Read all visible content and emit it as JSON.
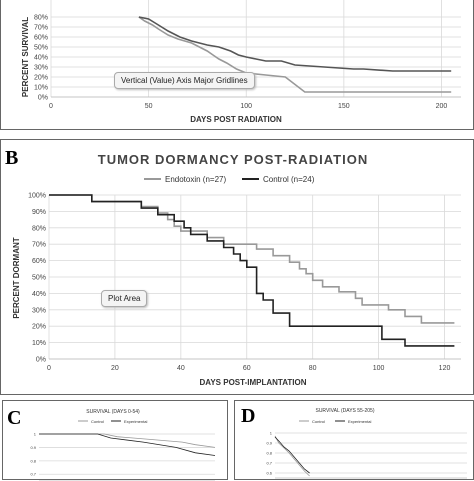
{
  "panelA": {
    "chart_data": {
      "type": "line",
      "xlabel": "DAYS POST RADIATION",
      "ylabel": "PERCENT SURVIVAL",
      "xlim": [
        0,
        210
      ],
      "ylim": [
        0,
        100
      ],
      "xticks": [
        "0",
        "50",
        "100",
        "150",
        "200"
      ],
      "yticks": [
        "0%",
        "10%",
        "20%",
        "30%",
        "40%",
        "50%",
        "60%",
        "70%",
        "80%"
      ],
      "grid": true,
      "series": [
        {
          "color": "#999999",
          "points": [
            [
              45,
              80
            ],
            [
              48,
              76
            ],
            [
              52,
              72
            ],
            [
              55,
              68
            ],
            [
              60,
              62
            ],
            [
              65,
              58
            ],
            [
              72,
              54
            ],
            [
              76,
              50
            ],
            [
              80,
              46
            ],
            [
              83,
              42
            ],
            [
              86,
              38
            ],
            [
              90,
              34
            ],
            [
              95,
              28
            ],
            [
              100,
              24
            ],
            [
              110,
              22
            ],
            [
              120,
              20
            ],
            [
              130,
              5
            ],
            [
              140,
              5
            ],
            [
              150,
              5
            ],
            [
              160,
              5
            ],
            [
              170,
              5
            ],
            [
              180,
              5
            ],
            [
              190,
              5
            ],
            [
              205,
              5
            ]
          ]
        },
        {
          "color": "#555555",
          "points": [
            [
              45,
              80
            ],
            [
              50,
              78
            ],
            [
              55,
              72
            ],
            [
              60,
              66
            ],
            [
              66,
              60
            ],
            [
              72,
              56
            ],
            [
              80,
              52
            ],
            [
              86,
              50
            ],
            [
              92,
              46
            ],
            [
              96,
              42
            ],
            [
              100,
              40
            ],
            [
              105,
              38
            ],
            [
              110,
              36
            ],
            [
              118,
              36
            ],
            [
              125,
              32
            ],
            [
              140,
              30
            ],
            [
              155,
              28
            ],
            [
              160,
              28
            ],
            [
              175,
              26
            ],
            [
              190,
              26
            ],
            [
              205,
              26
            ]
          ]
        }
      ]
    },
    "tooltip": "Vertical (Value) Axis Major Gridlines"
  },
  "panelB": {
    "letter": "B",
    "chart_data": {
      "type": "line",
      "title": "TUMOR DORMANCY  POST-RADIATION",
      "xlabel": "DAYS POST-IMPLANTATION",
      "ylabel": "PERCENT DORMANT",
      "xlim": [
        0,
        125
      ],
      "ylim": [
        0,
        100
      ],
      "xticks": [
        "0",
        "20",
        "40",
        "60",
        "80",
        "100",
        "120"
      ],
      "yticks": [
        "0%",
        "10%",
        "20%",
        "30%",
        "40%",
        "50%",
        "60%",
        "70%",
        "80%",
        "90%",
        "100%"
      ],
      "grid": true,
      "legend": "top",
      "series": [
        {
          "name": "Endotoxin (n=27)",
          "color": "#999999",
          "points": [
            [
              0,
              100
            ],
            [
              13,
              100
            ],
            [
              13,
              96
            ],
            [
              28,
              96
            ],
            [
              28,
              93
            ],
            [
              33,
              93
            ],
            [
              33,
              89
            ],
            [
              36,
              89
            ],
            [
              36,
              85
            ],
            [
              38,
              85
            ],
            [
              38,
              81
            ],
            [
              40,
              81
            ],
            [
              40,
              78
            ],
            [
              48,
              78
            ],
            [
              48,
              74
            ],
            [
              53,
              74
            ],
            [
              53,
              70
            ],
            [
              63,
              70
            ],
            [
              63,
              67
            ],
            [
              68,
              67
            ],
            [
              68,
              63
            ],
            [
              73,
              63
            ],
            [
              73,
              59
            ],
            [
              76,
              59
            ],
            [
              76,
              55
            ],
            [
              78,
              55
            ],
            [
              78,
              52
            ],
            [
              80,
              52
            ],
            [
              80,
              48
            ],
            [
              83,
              48
            ],
            [
              83,
              44
            ],
            [
              88,
              44
            ],
            [
              88,
              41
            ],
            [
              93,
              41
            ],
            [
              93,
              37
            ],
            [
              95,
              37
            ],
            [
              95,
              33
            ],
            [
              103,
              33
            ],
            [
              103,
              30
            ],
            [
              108,
              30
            ],
            [
              108,
              26
            ],
            [
              113,
              26
            ],
            [
              113,
              22
            ],
            [
              123,
              22
            ]
          ]
        },
        {
          "name": "Control (n=24)",
          "color": "#222222",
          "points": [
            [
              0,
              100
            ],
            [
              13,
              100
            ],
            [
              13,
              96
            ],
            [
              28,
              96
            ],
            [
              28,
              92
            ],
            [
              33,
              92
            ],
            [
              33,
              88
            ],
            [
              38,
              88
            ],
            [
              38,
              84
            ],
            [
              41,
              84
            ],
            [
              41,
              80
            ],
            [
              43,
              80
            ],
            [
              43,
              76
            ],
            [
              48,
              76
            ],
            [
              48,
              72
            ],
            [
              53,
              72
            ],
            [
              53,
              68
            ],
            [
              56,
              68
            ],
            [
              56,
              64
            ],
            [
              58,
              64
            ],
            [
              58,
              60
            ],
            [
              60,
              60
            ],
            [
              60,
              56
            ],
            [
              63,
              56
            ],
            [
              63,
              40
            ],
            [
              65,
              40
            ],
            [
              65,
              36
            ],
            [
              68,
              36
            ],
            [
              68,
              28
            ],
            [
              73,
              28
            ],
            [
              73,
              20
            ],
            [
              101,
              20
            ],
            [
              101,
              12
            ],
            [
              108,
              12
            ],
            [
              108,
              8
            ],
            [
              123,
              8
            ]
          ]
        }
      ]
    },
    "tooltip": "Plot Area"
  },
  "panelC": {
    "letter": "C",
    "chart_data": {
      "type": "line",
      "title": "SURVIVAL    (DAYS 0-54)",
      "yticks": [
        "1",
        "0.9",
        "0.8",
        "0.7"
      ],
      "ylim": [
        0.65,
        1.0
      ],
      "xlim": [
        0,
        54
      ],
      "series": [
        {
          "name": "Control",
          "color": "#999999",
          "points": [
            [
              0,
              1
            ],
            [
              20,
              1
            ],
            [
              24,
              0.98
            ],
            [
              34,
              0.96
            ],
            [
              44,
              0.94
            ],
            [
              48,
              0.92
            ],
            [
              54,
              0.9
            ]
          ]
        },
        {
          "name": "Experimental",
          "color": "#222222",
          "points": [
            [
              0,
              1
            ],
            [
              18,
              1
            ],
            [
              22,
              0.97
            ],
            [
              32,
              0.94
            ],
            [
              42,
              0.9
            ],
            [
              48,
              0.86
            ],
            [
              54,
              0.84
            ]
          ]
        }
      ]
    }
  },
  "panelD": {
    "letter": "D",
    "chart_data": {
      "type": "line",
      "title": "SURVIVAL    (DAYS 55-205)",
      "yticks": [
        "1",
        "0.9",
        "0.8",
        "0.7",
        "0.6"
      ],
      "ylim": [
        0.55,
        1.0
      ],
      "xlim": [
        55,
        205
      ],
      "series": [
        {
          "name": "Control",
          "color": "#999999",
          "points": [
            [
              55,
              0.97
            ],
            [
              58,
              0.9
            ],
            [
              62,
              0.85
            ],
            [
              66,
              0.8
            ],
            [
              70,
              0.74
            ],
            [
              74,
              0.68
            ],
            [
              78,
              0.62
            ],
            [
              82,
              0.57
            ]
          ]
        },
        {
          "name": "Experimental",
          "color": "#222222",
          "points": [
            [
              55,
              0.96
            ],
            [
              58,
              0.92
            ],
            [
              62,
              0.86
            ],
            [
              66,
              0.82
            ],
            [
              70,
              0.76
            ],
            [
              74,
              0.7
            ],
            [
              78,
              0.64
            ],
            [
              82,
              0.6
            ]
          ]
        }
      ]
    }
  }
}
